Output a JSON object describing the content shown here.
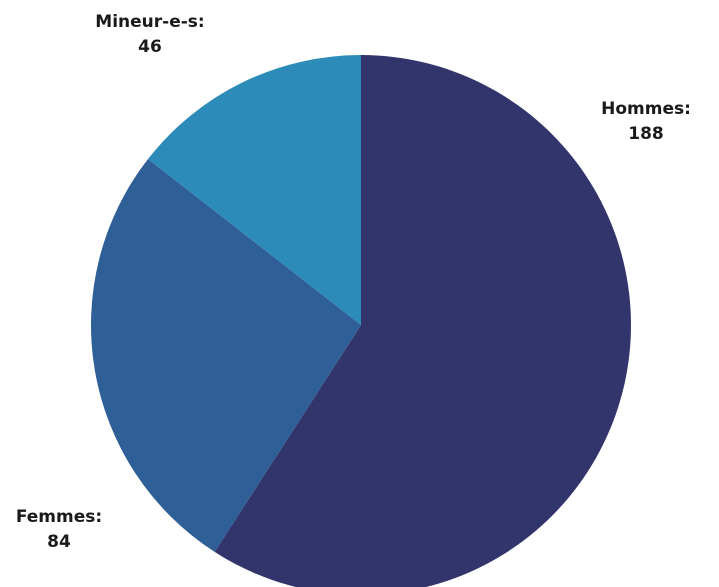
{
  "chart_data": {
    "type": "pie",
    "title": "",
    "slices": [
      {
        "label": "Hommes:",
        "value": 188,
        "value_text": "188",
        "color": "#32356b"
      },
      {
        "label": "Femmes:",
        "value": 84,
        "value_text": "84",
        "color": "#2f5f97"
      },
      {
        "label": "Mineur-e-s:",
        "value": 46,
        "value_text": "46",
        "color": "#2d8bb9"
      }
    ],
    "start_angle": "12 o'clock",
    "direction": "clockwise",
    "legend": "none",
    "data_labels": "outside, label above value"
  }
}
